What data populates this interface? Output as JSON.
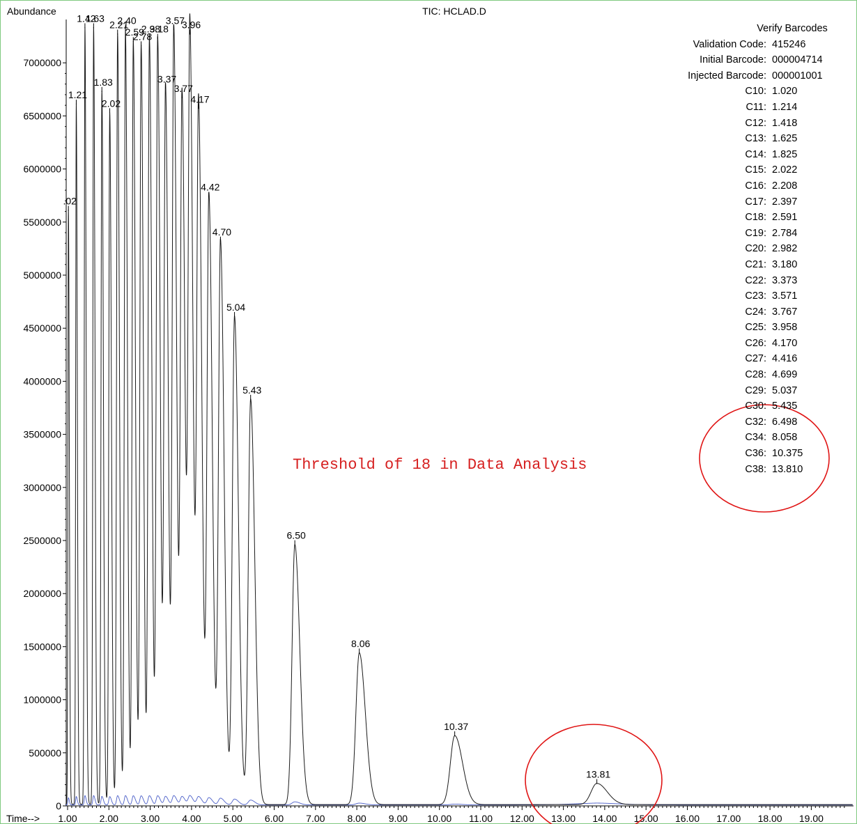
{
  "chart_data": {
    "type": "line",
    "title": "TIC: HCLAD.D",
    "ylabel": "Abundance",
    "xlabel": "Time-->",
    "xlim": [
      0.9,
      20.0
    ],
    "ylim": [
      0,
      7500000
    ],
    "x_ticks": [
      "1.00",
      "2.00",
      "3.00",
      "4.00",
      "5.00",
      "6.00",
      "7.00",
      "8.00",
      "9.00",
      "10.00",
      "11.00",
      "12.00",
      "13.00",
      "14.00",
      "15.00",
      "16.00",
      "17.00",
      "18.00",
      "19.00"
    ],
    "y_ticks": [
      "0",
      "500000",
      "1000000",
      "1500000",
      "2000000",
      "2500000",
      "3000000",
      "3500000",
      "4000000",
      "4500000",
      "5000000",
      "5500000",
      "6000000",
      "6500000",
      "7000000"
    ],
    "peaks": [
      {
        "x": 1.02,
        "y": 5600000,
        "label": ".02"
      },
      {
        "x": 1.21,
        "y": 6600000,
        "label": "1.21"
      },
      {
        "x": 1.42,
        "y": 7320000,
        "label": "1.42"
      },
      {
        "x": 1.63,
        "y": 7320000,
        "label": "1.63"
      },
      {
        "x": 1.83,
        "y": 6720000,
        "label": "1.83"
      },
      {
        "x": 2.02,
        "y": 6520000,
        "label": "2.02"
      },
      {
        "x": 2.21,
        "y": 7260000,
        "label": "2.21"
      },
      {
        "x": 2.4,
        "y": 7300000,
        "label": "2.40"
      },
      {
        "x": 2.59,
        "y": 7190000,
        "label": "2.59"
      },
      {
        "x": 2.78,
        "y": 7150000,
        "label": "2.78"
      },
      {
        "x": 2.98,
        "y": 7220000,
        "label": "2.98"
      },
      {
        "x": 3.18,
        "y": 7220000,
        "label": "3.18"
      },
      {
        "x": 3.37,
        "y": 6750000,
        "label": "3.37"
      },
      {
        "x": 3.57,
        "y": 7300000,
        "label": "3.57"
      },
      {
        "x": 3.77,
        "y": 6660000,
        "label": "3.77"
      },
      {
        "x": 3.96,
        "y": 7260000,
        "label": "3.96"
      },
      {
        "x": 4.17,
        "y": 6560000,
        "label": "4.17"
      },
      {
        "x": 4.42,
        "y": 5730000,
        "label": "4.42"
      },
      {
        "x": 4.7,
        "y": 5310000,
        "label": "4.70"
      },
      {
        "x": 5.04,
        "y": 4600000,
        "label": "5.04"
      },
      {
        "x": 5.43,
        "y": 3820000,
        "label": "5.43"
      },
      {
        "x": 6.5,
        "y": 2450000,
        "label": "6.50"
      },
      {
        "x": 8.06,
        "y": 1430000,
        "label": "8.06"
      },
      {
        "x": 10.37,
        "y": 650000,
        "label": "10.37"
      },
      {
        "x": 13.81,
        "y": 200000,
        "label": "13.81"
      }
    ]
  },
  "info": {
    "title": "Verify Barcodes",
    "rows": [
      {
        "k": "Validation Code:",
        "v": "415246"
      },
      {
        "k": "Initial Barcode:",
        "v": "000004714"
      },
      {
        "k": "Injected Barcode:",
        "v": "000001001"
      },
      {
        "k": "C10:",
        "v": "1.020"
      },
      {
        "k": "C11:",
        "v": "1.214"
      },
      {
        "k": "C12:",
        "v": "1.418"
      },
      {
        "k": "C13:",
        "v": "1.625"
      },
      {
        "k": "C14:",
        "v": "1.825"
      },
      {
        "k": "C15:",
        "v": "2.022"
      },
      {
        "k": "C16:",
        "v": "2.208"
      },
      {
        "k": "C17:",
        "v": "2.397"
      },
      {
        "k": "C18:",
        "v": "2.591"
      },
      {
        "k": "C19:",
        "v": "2.784"
      },
      {
        "k": "C20:",
        "v": "2.982"
      },
      {
        "k": "C21:",
        "v": "3.180"
      },
      {
        "k": "C22:",
        "v": "3.373"
      },
      {
        "k": "C23:",
        "v": "3.571"
      },
      {
        "k": "C24:",
        "v": "3.767"
      },
      {
        "k": "C25:",
        "v": "3.958"
      },
      {
        "k": "C26:",
        "v": "4.170"
      },
      {
        "k": "C27:",
        "v": "4.416"
      },
      {
        "k": "C28:",
        "v": "4.699"
      },
      {
        "k": "C29:",
        "v": "5.037"
      },
      {
        "k": "C30:",
        "v": "5.435"
      },
      {
        "k": "C32:",
        "v": "6.498"
      },
      {
        "k": "C34:",
        "v": "8.058"
      },
      {
        "k": "C36:",
        "v": "10.375"
      },
      {
        "k": "C38:",
        "v": "13.810"
      }
    ]
  },
  "annotation": {
    "text": "Threshold of 18 in Data Analysis",
    "color": "#d62020"
  }
}
